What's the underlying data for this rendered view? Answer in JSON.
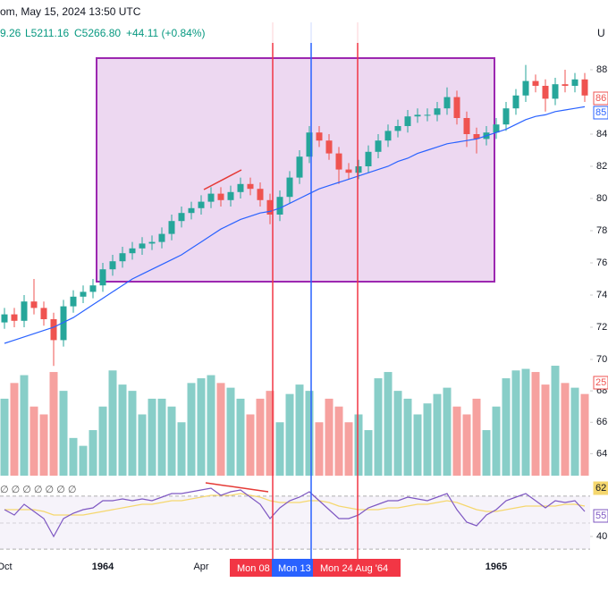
{
  "header": {
    "title": "om, May 15, 2024 13:50 UTC",
    "ohlc": "9.26",
    "low": "L5211.16",
    "close": "C5266.80",
    "change": "+44.11 (+0.84%)",
    "currency": "U"
  },
  "chart_data": {
    "type": "candlestick",
    "categories": [
      "Oct",
      null,
      null,
      null,
      null,
      null,
      null,
      null,
      null,
      null,
      "1964",
      null,
      null,
      null,
      null,
      null,
      null,
      null,
      null,
      null,
      "Apr",
      null,
      null,
      null,
      null,
      null,
      null,
      null,
      null,
      null,
      null,
      null,
      null,
      null,
      null,
      null,
      null,
      null,
      null,
      null,
      null,
      null,
      null,
      null,
      null,
      null,
      null,
      null,
      null,
      null,
      "1965",
      null,
      null,
      null,
      null,
      null,
      null,
      null,
      null,
      null
    ],
    "open": [
      72.3,
      72.8,
      72.4,
      73.6,
      73.2,
      72.5,
      71.2,
      73.3,
      73.9,
      74.2,
      74.6,
      75.6,
      76.1,
      76.6,
      76.9,
      77.2,
      77.3,
      77.8,
      78.6,
      79.1,
      79.4,
      79.8,
      80.3,
      79.9,
      80.4,
      80.9,
      80.6,
      79.9,
      79.0,
      80.1,
      81.3,
      82.6,
      84.1,
      83.6,
      82.8,
      81.8,
      81.6,
      82.0,
      82.9,
      83.6,
      84.2,
      84.5,
      85.1,
      85.2,
      85.2,
      85.6,
      86.3,
      85.0,
      84.0,
      83.7,
      84.1,
      84.6,
      85.6,
      86.4,
      87.3,
      87.0,
      86.2,
      87.1,
      87.0,
      87.4
    ],
    "high": [
      73.2,
      73.2,
      74.0,
      75.0,
      73.6,
      72.9,
      73.7,
      74.3,
      74.6,
      75.0,
      76.0,
      76.5,
      77.0,
      77.3,
      77.6,
      77.7,
      78.2,
      79.0,
      79.5,
      79.8,
      80.2,
      80.7,
      80.7,
      80.8,
      81.3,
      81.3,
      81.0,
      80.3,
      80.5,
      81.7,
      83.0,
      84.5,
      84.5,
      84.0,
      83.2,
      82.2,
      82.4,
      83.3,
      84.0,
      84.6,
      84.9,
      85.5,
      85.6,
      85.6,
      86.0,
      86.9,
      86.7,
      85.4,
      84.4,
      84.5,
      85.0,
      86.0,
      86.8,
      88.3,
      87.7,
      87.4,
      87.5,
      88.0,
      87.8,
      87.8
    ],
    "low": [
      71.9,
      72.0,
      72.0,
      72.8,
      72.1,
      69.6,
      70.8,
      72.9,
      73.5,
      73.8,
      74.2,
      75.2,
      75.7,
      76.2,
      76.5,
      76.8,
      76.9,
      77.4,
      78.2,
      78.7,
      79.0,
      79.4,
      79.5,
      79.5,
      80.0,
      80.2,
      79.5,
      78.4,
      78.6,
      79.7,
      80.9,
      82.2,
      83.2,
      82.4,
      80.9,
      81.2,
      81.2,
      81.6,
      82.5,
      83.2,
      83.8,
      84.1,
      84.7,
      84.8,
      84.8,
      85.2,
      84.6,
      83.2,
      82.8,
      83.3,
      83.7,
      84.2,
      85.2,
      86.0,
      86.6,
      85.4,
      85.8,
      86.6,
      86.6,
      86.0
    ],
    "close": [
      72.8,
      72.4,
      73.6,
      73.2,
      72.5,
      71.2,
      73.3,
      73.9,
      74.2,
      74.6,
      75.6,
      76.1,
      76.6,
      76.9,
      77.2,
      77.3,
      77.8,
      78.6,
      79.1,
      79.4,
      79.8,
      80.3,
      79.9,
      80.4,
      80.9,
      80.6,
      79.9,
      79.0,
      80.1,
      81.3,
      82.6,
      84.1,
      83.6,
      82.8,
      81.8,
      81.6,
      82.0,
      82.9,
      83.6,
      84.2,
      84.5,
      85.1,
      85.2,
      85.2,
      85.6,
      86.3,
      85.0,
      84.0,
      83.7,
      84.1,
      84.6,
      85.6,
      86.4,
      87.3,
      87.0,
      86.2,
      87.1,
      87.0,
      87.4,
      86.4
    ],
    "ma": [
      71.0,
      71.2,
      71.4,
      71.6,
      71.8,
      72.0,
      72.3,
      72.6,
      73.0,
      73.4,
      73.8,
      74.2,
      74.6,
      75.0,
      75.3,
      75.6,
      75.9,
      76.2,
      76.5,
      76.9,
      77.3,
      77.7,
      78.1,
      78.4,
      78.7,
      78.9,
      79.1,
      79.2,
      79.4,
      79.7,
      80.0,
      80.3,
      80.6,
      80.8,
      81.0,
      81.2,
      81.4,
      81.6,
      81.8,
      82.0,
      82.3,
      82.5,
      82.8,
      83.0,
      83.2,
      83.4,
      83.5,
      83.6,
      83.7,
      83.9,
      84.1,
      84.3,
      84.6,
      84.9,
      85.1,
      85.2,
      85.4,
      85.5,
      85.6,
      85.7
    ],
    "up_color": "#26a69a",
    "down_color": "#ef5350",
    "ma_color": "#2962ff",
    "ylim": [
      70,
      88
    ],
    "yticks": [
      88,
      84,
      82,
      80,
      78,
      76,
      74,
      72,
      70
    ],
    "price_label": 86,
    "ma_label": 85,
    "volume": {
      "values": [
        67.5,
        68.5,
        69.0,
        67.0,
        66.5,
        69.2,
        68.0,
        65.0,
        64.5,
        65.5,
        67.0,
        69.3,
        68.4,
        68.0,
        66.5,
        67.5,
        67.5,
        67.0,
        66.0,
        68.5,
        68.8,
        69.0,
        68.5,
        68.2,
        67.5,
        66.5,
        67.5,
        68.0,
        66.0,
        67.8,
        68.4,
        68.0,
        66.0,
        67.5,
        67.0,
        66.0,
        66.5,
        65.5,
        68.8,
        69.2,
        68.0,
        67.5,
        66.5,
        67.2,
        67.8,
        68.2,
        67.0,
        66.5,
        67.5,
        65.5,
        67.0,
        68.8,
        69.3,
        69.4,
        69.2,
        68.4,
        69.6,
        68.5,
        68.2,
        67.8
      ],
      "ylim": [
        62.6,
        70
      ],
      "yticks": [
        68,
        66,
        64
      ],
      "badge": 25
    },
    "rsi": {
      "values": [
        55,
        52,
        58,
        54,
        50,
        40,
        50,
        53,
        55,
        56,
        60,
        60,
        61,
        60,
        61,
        60,
        62,
        64,
        64,
        65,
        66,
        67,
        63,
        65,
        66,
        62,
        58,
        50,
        56,
        60,
        62,
        65,
        60,
        55,
        50,
        50,
        52,
        56,
        58,
        60,
        60,
        62,
        61,
        60,
        62,
        64,
        55,
        48,
        46,
        52,
        55,
        60,
        62,
        64,
        60,
        56,
        60,
        59,
        60,
        54
      ],
      "signal": [
        55,
        55,
        55,
        55,
        54,
        52,
        52,
        52,
        52,
        53,
        54,
        55,
        56,
        57,
        58,
        58,
        59,
        60,
        60,
        61,
        62,
        63,
        63,
        63,
        64,
        63,
        62,
        60,
        59,
        59,
        59,
        60,
        60,
        59,
        57,
        56,
        55,
        55,
        55,
        56,
        56,
        57,
        58,
        58,
        59,
        60,
        59,
        57,
        55,
        54,
        54,
        55,
        56,
        57,
        57,
        57,
        57,
        58,
        58,
        57
      ],
      "color": "#7e57c2",
      "signal_color": "#f5d76e",
      "ylim": [
        30,
        70
      ],
      "yticks": [
        40
      ],
      "badges": [
        62,
        55
      ],
      "indicators": "∅ ∅ ∅ ∅ ∅ ∅ ∅"
    },
    "time_badges": [
      "Mon 08",
      "Mon 13",
      "Mon 24 Aug '64"
    ]
  }
}
